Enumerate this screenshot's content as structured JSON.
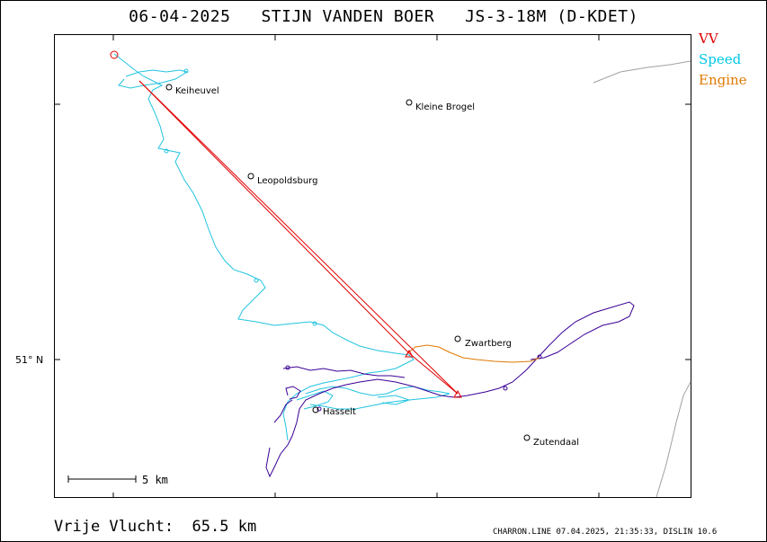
{
  "header": {
    "title": "06-04-2025   STIJN VANDEN BOER   JS-3-18M (D-KDET)"
  },
  "legend": {
    "items": [
      {
        "label": "VV",
        "color": "#e00000"
      },
      {
        "label": "Speed",
        "color": "#00c8e6"
      },
      {
        "label": "Engine",
        "color": "#e07800"
      }
    ]
  },
  "map": {
    "latitude_label": "51° N",
    "scale_label": "5  km",
    "places": [
      {
        "name": "Keiheuvel"
      },
      {
        "name": "Kleine Brogel"
      },
      {
        "name": "Leopoldsburg"
      },
      {
        "name": "Zwartberg"
      },
      {
        "name": "Hasselt"
      },
      {
        "name": "Zutendaal"
      }
    ],
    "colors": {
      "track_speed": "#22c4e0",
      "track_climb": "#3a0096",
      "engine": "#e07800",
      "vv": "#e00000",
      "border": "#a0a0a0"
    }
  },
  "footer": {
    "distance_label": "Vrije Vlucht:",
    "distance_value": "65.5 km",
    "credits": "CHARRON.LINE 07.04.2025, 21:35:33, DISLIN 10.6"
  }
}
